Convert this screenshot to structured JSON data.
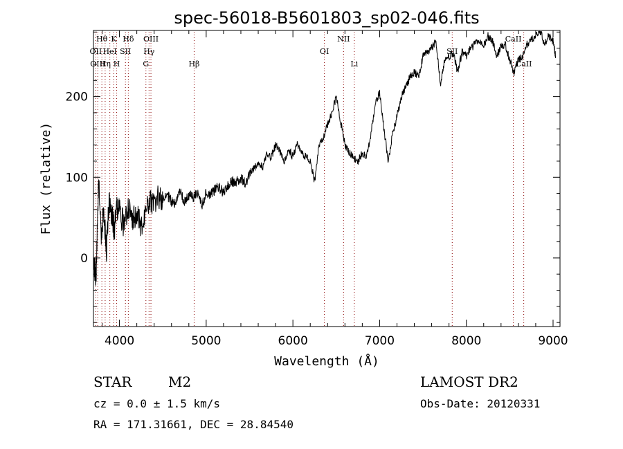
{
  "chart_data": {
    "type": "line",
    "title": "spec-56018-B5601803_sp02-046.fits",
    "xlabel": "Wavelength (Å)",
    "ylabel": "Flux (relative)",
    "xlim": [
      3700,
      9080
    ],
    "ylim": [
      -85,
      282
    ],
    "x_ticks": [
      4000,
      5000,
      6000,
      7000,
      8000,
      9000
    ],
    "y_ticks": [
      0,
      100,
      200
    ],
    "grid": false,
    "line_color": "#000000",
    "marker_color": "#8b0000",
    "series": [
      {
        "x": [
          3700,
          3730,
          3760,
          3790,
          3820,
          3850,
          3880,
          3910,
          3940,
          3970,
          4000,
          4050,
          4100,
          4150,
          4200,
          4250,
          4300,
          4350,
          4400,
          4450,
          4500,
          4550,
          4600,
          4650,
          4700,
          4750,
          4800,
          4850,
          4900,
          4950,
          5000,
          5050,
          5100,
          5150,
          5200,
          5250,
          5300,
          5350,
          5400,
          5450,
          5500,
          5550,
          5600,
          5650,
          5700,
          5750,
          5800,
          5850,
          5900,
          5950,
          6000,
          6050,
          6100,
          6150,
          6200,
          6250,
          6300,
          6350,
          6400,
          6450,
          6500,
          6550,
          6600,
          6650,
          6700,
          6750,
          6800,
          6850,
          6900,
          6950,
          7000,
          7050,
          7100,
          7150,
          7200,
          7250,
          7300,
          7350,
          7400,
          7450,
          7500,
          7550,
          7600,
          7650,
          7700,
          7750,
          7800,
          7850,
          7900,
          7950,
          8000,
          8050,
          8100,
          8150,
          8200,
          8250,
          8300,
          8350,
          8400,
          8450,
          8500,
          8550,
          8600,
          8650,
          8700,
          8750,
          8800,
          8850,
          8900,
          8950,
          9000,
          9030
        ],
        "y": [
          0,
          -25,
          95,
          30,
          60,
          10,
          70,
          55,
          35,
          60,
          60,
          40,
          65,
          50,
          55,
          35,
          60,
          70,
          68,
          75,
          72,
          78,
          70,
          68,
          82,
          70,
          78,
          75,
          80,
          65,
          82,
          78,
          85,
          88,
          80,
          90,
          95,
          95,
          98,
          92,
          105,
          110,
          118,
          112,
          130,
          125,
          140,
          132,
          120,
          135,
          125,
          140,
          130,
          125,
          120,
          95,
          140,
          150,
          165,
          180,
          200,
          170,
          140,
          130,
          125,
          120,
          130,
          125,
          155,
          190,
          205,
          160,
          120,
          155,
          175,
          200,
          210,
          225,
          230,
          225,
          250,
          255,
          260,
          270,
          215,
          245,
          250,
          255,
          230,
          255,
          250,
          260,
          265,
          270,
          262,
          275,
          270,
          250,
          262,
          265,
          245,
          230,
          245,
          250,
          265,
          270,
          275,
          282,
          265,
          275,
          268,
          250
        ]
      }
    ],
    "lines": [
      {
        "label": "Hθ",
        "x": 3797,
        "row": 0
      },
      {
        "label": "OII",
        "x": 3727,
        "row": 1
      },
      {
        "label": "OIII",
        "x": 3750,
        "row": 2
      },
      {
        "label": "K",
        "x": 3934,
        "row": 0
      },
      {
        "label": "HeI",
        "x": 3889,
        "row": 1
      },
      {
        "label": "Hη",
        "x": 3835,
        "row": 2
      },
      {
        "label": "Hδ",
        "x": 4102,
        "row": 0
      },
      {
        "label": "SII",
        "x": 4069,
        "row": 1
      },
      {
        "label": "H",
        "x": 3968,
        "row": 2
      },
      {
        "label": "OIII",
        "x": 4363,
        "row": 0
      },
      {
        "label": "Hγ",
        "x": 4341,
        "row": 1
      },
      {
        "label": "G",
        "x": 4305,
        "row": 2
      },
      {
        "label": "Hβ",
        "x": 4861,
        "row": 2
      },
      {
        "label": "OI",
        "x": 6363,
        "row": 1
      },
      {
        "label": "NII",
        "x": 6584,
        "row": 0
      },
      {
        "label": "Li",
        "x": 6708,
        "row": 2
      },
      {
        "label": "SII",
        "x": 7837,
        "row": 1
      },
      {
        "label": "CaII",
        "x": 8542,
        "row": 0
      },
      {
        "label": "CaII",
        "x": 8662,
        "row": 2
      }
    ]
  },
  "info": {
    "object_class": "STAR",
    "subclass": "M2",
    "cz": "cz = 0.0 ± 1.5 km/s",
    "coords": "RA = 171.31661, DEC =  28.84540",
    "survey": "LAMOST DR2",
    "obs_date": "Obs-Date: 20120331"
  }
}
